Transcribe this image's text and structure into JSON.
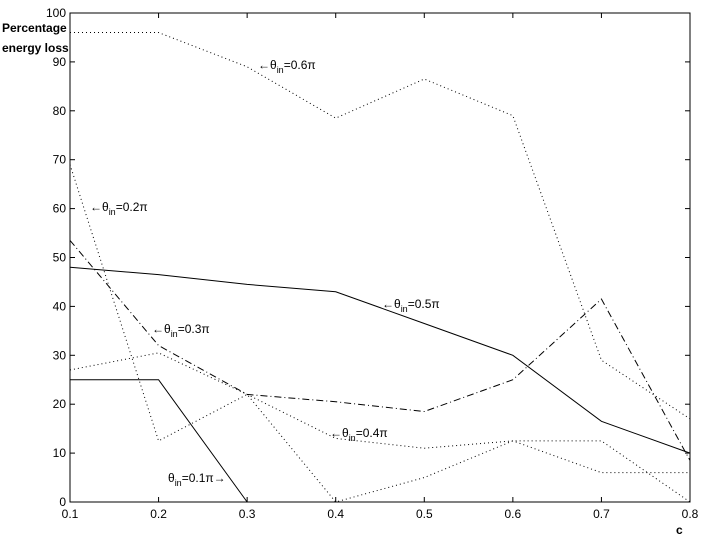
{
  "chart_data": {
    "type": "line",
    "ylabel": [
      "Percentage",
      "energy loss"
    ],
    "xlabel": "c",
    "x": [
      0.1,
      0.2,
      0.3,
      0.4,
      0.5,
      0.6,
      0.7,
      0.8
    ],
    "xlim": [
      0.1,
      0.8
    ],
    "xticks": [
      0.1,
      0.2,
      0.3,
      0.4,
      0.5,
      0.6,
      0.7,
      0.8
    ],
    "ylim": [
      0,
      100
    ],
    "yticks": [
      0,
      10,
      20,
      30,
      40,
      50,
      60,
      70,
      80,
      90,
      100
    ],
    "grid": false,
    "series": [
      {
        "color": "#000000",
        "style": "solid",
        "values": [
          25,
          25,
          0,
          null,
          null,
          null,
          null,
          null
        ]
      },
      {
        "color": "#000000",
        "style": "dotted",
        "values": [
          69,
          12.5,
          22,
          0,
          5,
          12.5,
          12.5,
          0
        ]
      },
      {
        "color": "#000000",
        "style": "dashdot",
        "values": [
          53.5,
          32,
          22,
          20.5,
          18.5,
          25,
          41.5,
          8.5
        ]
      },
      {
        "color": "#000000",
        "style": "dotted",
        "values": [
          27,
          30.5,
          22,
          13,
          11,
          12.5,
          6,
          6
        ]
      },
      {
        "color": "#000000",
        "style": "solid",
        "values": [
          48,
          46.5,
          44.5,
          43,
          36.5,
          30,
          16.5,
          10
        ]
      },
      {
        "color": "#000000",
        "style": "dotted",
        "values": [
          96,
          96,
          89,
          78.5,
          86.5,
          79,
          29,
          17
        ]
      }
    ],
    "annotations": [
      {
        "before": "θ",
        "sub": "in",
        "after": "=0.1π→"
      },
      {
        "before": "←θ",
        "sub": "in",
        "after": "=0.2π"
      },
      {
        "before": "←θ",
        "sub": "in",
        "after": "=0.3π"
      },
      {
        "before": "←θ",
        "sub": "in",
        "after": "=0.4π"
      },
      {
        "before": "←θ",
        "sub": "in",
        "after": "=0.5π"
      },
      {
        "before": "←θ",
        "sub": "in",
        "after": "=0.6π"
      }
    ]
  }
}
